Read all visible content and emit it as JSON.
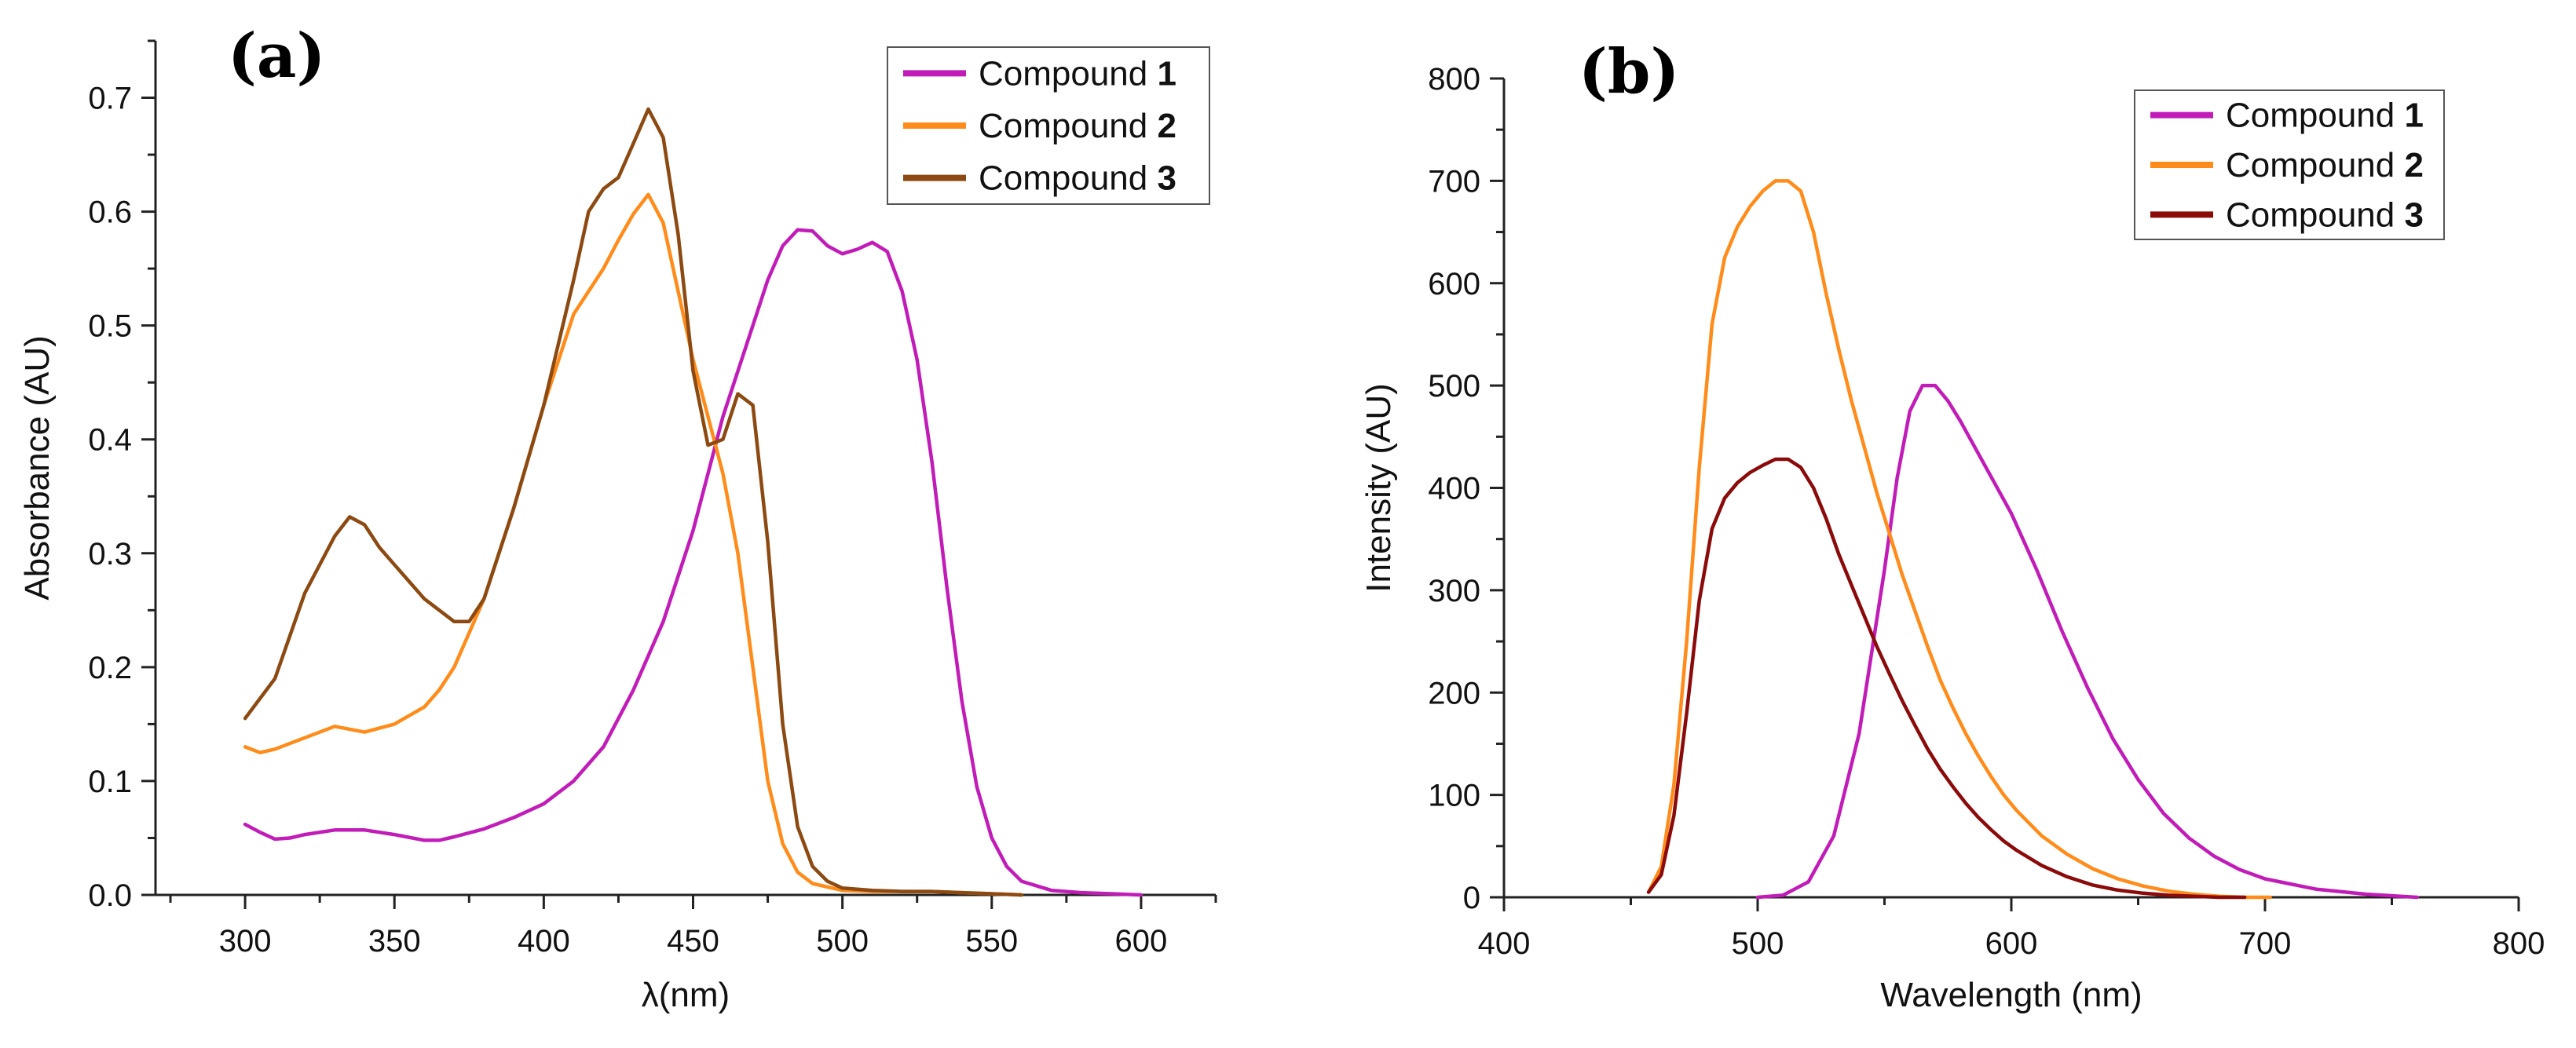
{
  "chart_data": [
    {
      "type": "line",
      "panel_label": "(a)",
      "xlabel": "λ(nm)",
      "ylabel": "Absorbance (AU)",
      "xlim": [
        270,
        625
      ],
      "ylim": [
        0,
        0.75
      ],
      "xticks": [
        300,
        350,
        400,
        450,
        500,
        550,
        600
      ],
      "yticks": [
        0.0,
        0.1,
        0.2,
        0.3,
        0.4,
        0.5,
        0.6,
        0.7
      ],
      "legend_position": "top-right",
      "series": [
        {
          "name": "Compound",
          "number": "1",
          "color": "#c21cb8",
          "x": [
            300,
            305,
            310,
            315,
            320,
            330,
            340,
            350,
            360,
            365,
            370,
            380,
            390,
            400,
            410,
            420,
            430,
            440,
            450,
            460,
            470,
            475,
            480,
            485,
            490,
            495,
            500,
            505,
            510,
            515,
            520,
            525,
            530,
            535,
            540,
            545,
            550,
            555,
            560,
            570,
            580,
            590,
            600
          ],
          "y": [
            0.062,
            0.055,
            0.049,
            0.05,
            0.053,
            0.057,
            0.057,
            0.053,
            0.048,
            0.048,
            0.051,
            0.058,
            0.068,
            0.08,
            0.1,
            0.13,
            0.18,
            0.24,
            0.32,
            0.42,
            0.5,
            0.54,
            0.57,
            0.584,
            0.583,
            0.57,
            0.563,
            0.567,
            0.573,
            0.565,
            0.53,
            0.47,
            0.38,
            0.27,
            0.17,
            0.095,
            0.05,
            0.025,
            0.012,
            0.004,
            0.002,
            0.001,
            0.0
          ]
        },
        {
          "name": "Compound",
          "number": "2",
          "color": "#ff8c1a",
          "x": [
            300,
            305,
            310,
            320,
            330,
            340,
            350,
            360,
            365,
            370,
            380,
            390,
            400,
            410,
            420,
            425,
            430,
            435,
            440,
            445,
            450,
            455,
            460,
            465,
            470,
            475,
            480,
            485,
            490,
            500,
            510,
            520,
            530,
            540,
            550,
            560
          ],
          "y": [
            0.13,
            0.125,
            0.128,
            0.138,
            0.148,
            0.143,
            0.15,
            0.165,
            0.18,
            0.2,
            0.26,
            0.34,
            0.43,
            0.51,
            0.55,
            0.575,
            0.598,
            0.615,
            0.59,
            0.53,
            0.47,
            0.42,
            0.37,
            0.3,
            0.2,
            0.1,
            0.045,
            0.02,
            0.01,
            0.004,
            0.003,
            0.003,
            0.003,
            0.002,
            0.001,
            0.0
          ]
        },
        {
          "name": "Compound",
          "number": "3",
          "color": "#8c4a12",
          "x": [
            300,
            310,
            320,
            330,
            335,
            340,
            345,
            350,
            360,
            370,
            375,
            380,
            390,
            400,
            410,
            415,
            420,
            425,
            430,
            435,
            440,
            445,
            450,
            455,
            460,
            465,
            470,
            475,
            480,
            485,
            490,
            495,
            500,
            510,
            520,
            530,
            540,
            550,
            560
          ],
          "y": [
            0.155,
            0.19,
            0.265,
            0.315,
            0.332,
            0.325,
            0.305,
            0.29,
            0.26,
            0.24,
            0.24,
            0.26,
            0.34,
            0.43,
            0.54,
            0.6,
            0.62,
            0.63,
            0.66,
            0.69,
            0.665,
            0.58,
            0.46,
            0.395,
            0.4,
            0.44,
            0.43,
            0.31,
            0.15,
            0.06,
            0.025,
            0.012,
            0.006,
            0.004,
            0.003,
            0.003,
            0.002,
            0.001,
            0.0
          ]
        }
      ]
    },
    {
      "type": "line",
      "panel_label": "(b)",
      "xlabel": "Wavelength (nm)",
      "ylabel": "Intensity (AU)",
      "xlim": [
        400,
        800
      ],
      "ylim": [
        0,
        800
      ],
      "xticks": [
        400,
        500,
        600,
        700,
        800
      ],
      "yticks": [
        0,
        100,
        200,
        300,
        400,
        500,
        600,
        700,
        800
      ],
      "legend_position": "top-right",
      "series": [
        {
          "name": "Compound",
          "number": "1",
          "color": "#c21cb8",
          "x": [
            500,
            510,
            520,
            530,
            540,
            550,
            555,
            560,
            565,
            570,
            575,
            580,
            590,
            600,
            610,
            620,
            630,
            640,
            650,
            660,
            670,
            680,
            690,
            700,
            720,
            740,
            760
          ],
          "y": [
            0,
            2,
            15,
            60,
            160,
            320,
            410,
            475,
            500,
            500,
            485,
            465,
            420,
            375,
            320,
            260,
            205,
            155,
            115,
            82,
            58,
            40,
            27,
            18,
            8,
            3,
            0
          ]
        },
        {
          "name": "Compound",
          "number": "2",
          "color": "#ff8c1a",
          "x": [
            457,
            462,
            467,
            472,
            477,
            482,
            487,
            492,
            497,
            502,
            507,
            512,
            517,
            522,
            527,
            532,
            537,
            542,
            547,
            552,
            557,
            562,
            567,
            572,
            577,
            582,
            587,
            592,
            597,
            602,
            612,
            622,
            632,
            642,
            652,
            662,
            672,
            682,
            692,
            702
          ],
          "y": [
            5,
            30,
            110,
            250,
            420,
            560,
            625,
            655,
            675,
            690,
            700,
            700,
            690,
            650,
            590,
            535,
            485,
            440,
            395,
            355,
            315,
            280,
            245,
            212,
            185,
            160,
            138,
            118,
            100,
            85,
            60,
            42,
            28,
            18,
            11,
            6,
            3,
            1,
            0,
            0
          ]
        },
        {
          "name": "Compound",
          "number": "3",
          "color": "#8b0a0a",
          "x": [
            457,
            462,
            467,
            472,
            477,
            482,
            487,
            492,
            497,
            502,
            507,
            512,
            517,
            522,
            527,
            532,
            537,
            542,
            547,
            552,
            557,
            562,
            567,
            572,
            577,
            582,
            587,
            592,
            597,
            602,
            612,
            622,
            632,
            642,
            652,
            662,
            672,
            682,
            692
          ],
          "y": [
            5,
            22,
            80,
            180,
            290,
            360,
            390,
            405,
            415,
            422,
            428,
            428,
            420,
            400,
            370,
            335,
            305,
            275,
            245,
            218,
            192,
            168,
            145,
            125,
            108,
            92,
            78,
            66,
            55,
            46,
            31,
            20,
            12,
            7,
            4,
            2,
            1,
            0,
            0
          ]
        }
      ]
    }
  ]
}
